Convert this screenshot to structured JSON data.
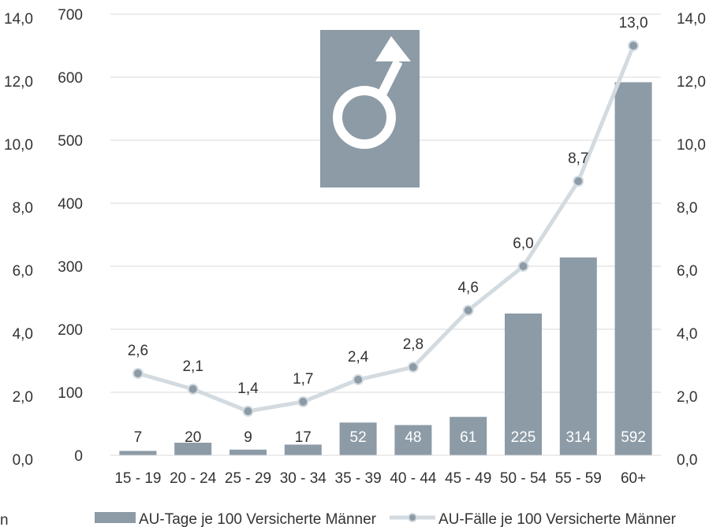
{
  "chart_data": {
    "type": "bar+line",
    "categories": [
      "15 - 19",
      "20 - 24",
      "25 - 29",
      "30 - 34",
      "35 - 39",
      "40 - 44",
      "45 - 49",
      "50 - 54",
      "55 - 59",
      "60+"
    ],
    "series": [
      {
        "name": "AU-Tage je 100 Versicherte Männer",
        "type": "bar",
        "axis": "left",
        "values": [
          7,
          20,
          9,
          17,
          52,
          48,
          61,
          225,
          314,
          592
        ],
        "labels": [
          "7",
          "20",
          "9",
          "17",
          "52",
          "48",
          "61",
          "225",
          "314",
          "592"
        ]
      },
      {
        "name": "AU-Fälle je 100 Versicherte Männer",
        "type": "line",
        "axis": "right",
        "values": [
          2.6,
          2.1,
          1.4,
          1.7,
          2.4,
          2.8,
          4.6,
          6.0,
          8.7,
          13.0
        ],
        "labels": [
          "2,6",
          "2,1",
          "1,4",
          "1,7",
          "2,4",
          "2,8",
          "4,6",
          "6,0",
          "8,7",
          "13,0"
        ]
      }
    ],
    "y_left": {
      "ylim": [
        0,
        700
      ],
      "ticks": [
        "0",
        "100",
        "200",
        "300",
        "400",
        "500",
        "600",
        "700"
      ]
    },
    "y_right": {
      "ylim": [
        0,
        14
      ],
      "ticks": [
        "0,0",
        "2,0",
        "4,0",
        "6,0",
        "8,0",
        "10,0",
        "12,0",
        "14,0"
      ]
    },
    "y_outer": {
      "ticks": [
        "0,0",
        "2,0",
        "4,0",
        "6,0",
        "8,0",
        "10,0",
        "12,0",
        "14,0"
      ]
    },
    "grid": true,
    "legend": "bottom",
    "colors": {
      "bar": "#8c9ba6",
      "line": "#d3dbe0",
      "marker": "#8c9ba6",
      "grid": "#d9d9d9",
      "symbol_bg": "#8c9ba6",
      "symbol_fg": "#ffffff"
    },
    "icon": "male-symbol-icon",
    "footnote": "n"
  }
}
